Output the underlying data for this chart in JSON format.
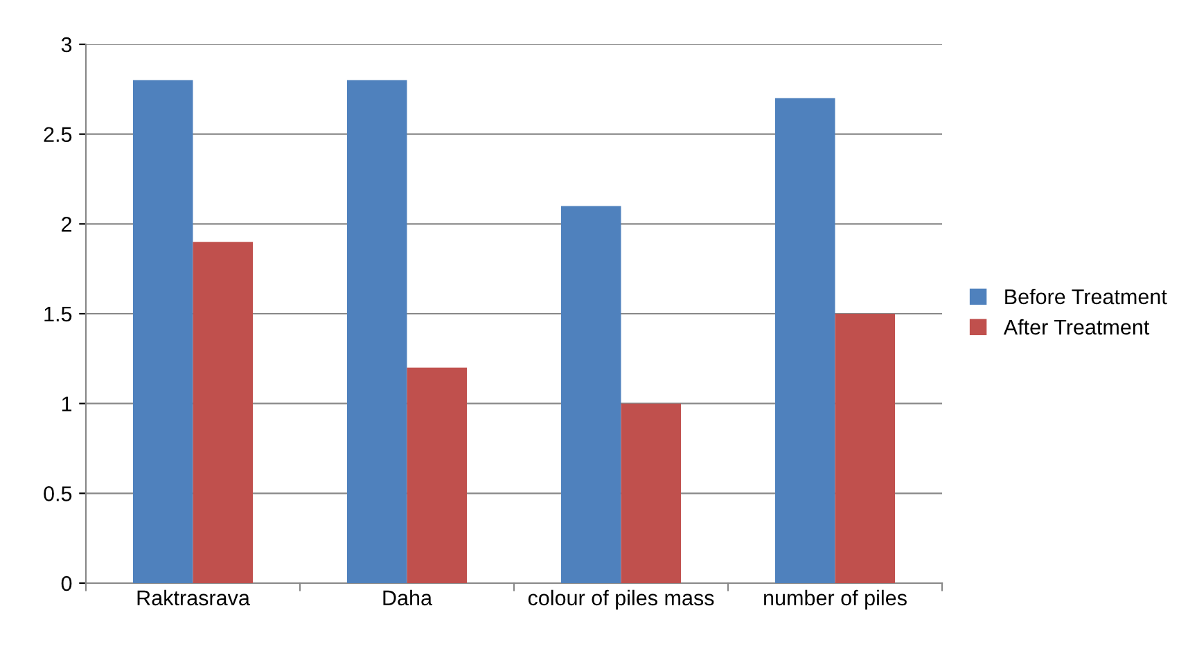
{
  "chart_data": {
    "type": "bar",
    "categories": [
      "Raktrasrava",
      "Daha",
      "colour of piles mass",
      "number of piles"
    ],
    "series": [
      {
        "name": "Before Treatment",
        "color": "#4f81bd",
        "values": [
          2.8,
          2.8,
          2.1,
          2.7
        ]
      },
      {
        "name": "After Treatment",
        "color": "#c0504d",
        "values": [
          1.9,
          1.2,
          1.0,
          1.5
        ]
      }
    ],
    "ylim": [
      0,
      3
    ],
    "yticks": [
      0,
      0.5,
      1,
      1.5,
      2,
      2.5,
      3
    ],
    "grid": "y",
    "legend": "right"
  }
}
